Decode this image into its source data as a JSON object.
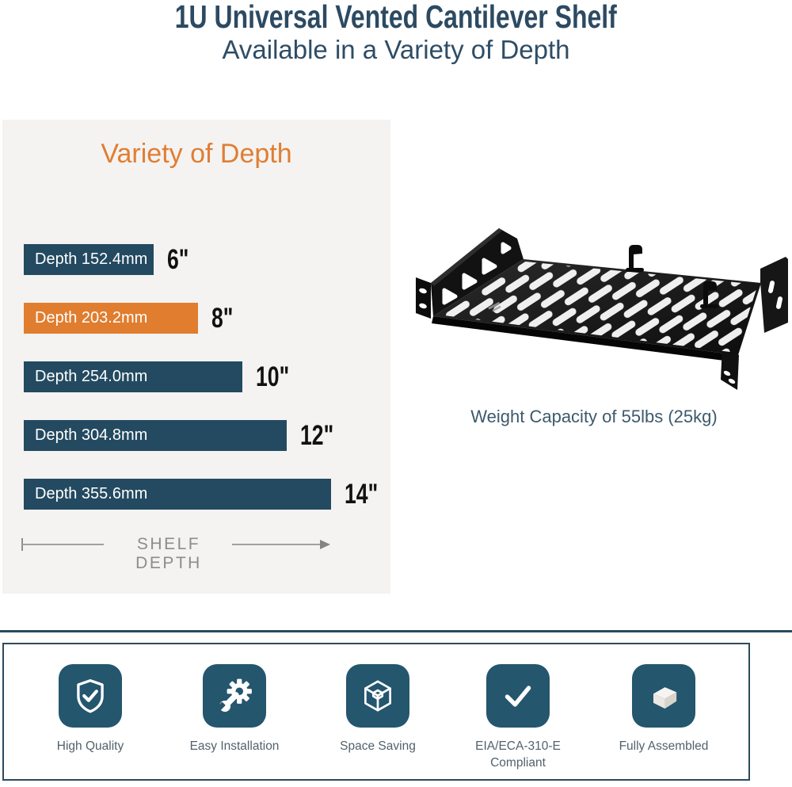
{
  "header": {
    "title": "1U Universal Vented Cantilever Shelf",
    "subtitle": "Available in a Variety of Depth"
  },
  "chart_data": {
    "type": "bar",
    "orientation": "horizontal",
    "title": "Variety of Depth",
    "categories": [
      "Depth 152.4mm",
      "Depth 203.2mm",
      "Depth 254.0mm",
      "Depth 304.8mm",
      "Depth 355.6mm"
    ],
    "values": [
      6,
      8,
      10,
      12,
      14
    ],
    "value_labels": [
      "6\"",
      "8\"",
      "10\"",
      "12\"",
      "14\""
    ],
    "unit": "inches",
    "xlabel": "SHELF DEPTH",
    "highlight_index": 1,
    "highlight_color": "#e07d2f",
    "bar_color": "#234a60",
    "grid": false
  },
  "product": {
    "caption": "Weight Capacity of 55lbs (25kg)"
  },
  "features": [
    {
      "icon": "shield-check-icon",
      "label": "High Quality"
    },
    {
      "icon": "gear-wrench-icon",
      "label": "Easy Installation"
    },
    {
      "icon": "cube-icon",
      "label": "Space Saving"
    },
    {
      "icon": "checkmark-icon",
      "label": "EIA/ECA-310-E Compliant"
    },
    {
      "icon": "assembled-box-icon",
      "label": "Fully Assembled"
    }
  ],
  "colors": {
    "title_navy": "#2c4a62",
    "accent_orange": "#e07d2f",
    "bar_navy": "#234a60",
    "icon_teal": "#24566e",
    "panel_bg": "#f4f3f1",
    "border_navy": "#2b4a5e",
    "axis_gray": "#8c8c8c"
  }
}
